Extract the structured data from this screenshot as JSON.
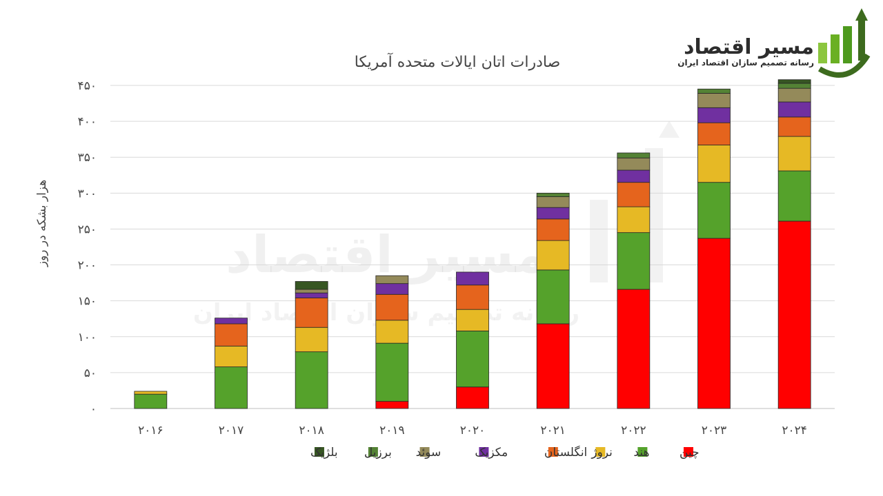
{
  "logo": {
    "name": "مسیر اقتصاد",
    "tagline": "رسانه تصمیم سازان اقتصاد ایران"
  },
  "chart_data": {
    "type": "bar",
    "stacked": true,
    "title": "صادرات اتان ایالات متحده آمریکا",
    "xlabel": "",
    "ylabel": "هزار بشکه در روز",
    "ylim": [
      0,
      450
    ],
    "y_ticks": [
      0,
      50,
      100,
      150,
      200,
      250,
      300,
      350,
      400,
      450
    ],
    "y_tick_labels": [
      "۰",
      "۵۰",
      "۱۰۰",
      "۱۵۰",
      "۲۰۰",
      "۲۵۰",
      "۳۰۰",
      "۳۵۰",
      "۴۰۰",
      "۴۵۰"
    ],
    "grid": true,
    "legend_position": "bottom",
    "categories": [
      "2016",
      "2017",
      "2018",
      "2019",
      "2020",
      "2021",
      "2022",
      "2023",
      "2024"
    ],
    "category_labels": [
      "۲۰۱۶",
      "۲۰۱۷",
      "۲۰۱۸",
      "۲۰۱۹",
      "۲۰۲۰",
      "۲۰۲۱",
      "۲۰۲۲",
      "۲۰۲۳",
      "۲۰۲۴"
    ],
    "series": [
      {
        "name": "چین",
        "color": "#ff0000",
        "values": [
          0,
          0,
          0,
          10,
          30,
          118,
          166,
          237,
          261
        ]
      },
      {
        "name": "هند",
        "color": "#55a22b",
        "values": [
          20,
          58,
          79,
          81,
          78,
          75,
          79,
          78,
          70
        ]
      },
      {
        "name": "نروژ",
        "color": "#e6b925",
        "values": [
          4,
          29,
          34,
          32,
          30,
          41,
          36,
          52,
          48
        ]
      },
      {
        "name": "انگلستان",
        "color": "#e5641d",
        "values": [
          0,
          31,
          41,
          36,
          34,
          30,
          34,
          31,
          27
        ]
      },
      {
        "name": "مکزیک",
        "color": "#7030a0",
        "values": [
          0,
          8,
          7,
          15,
          18,
          16,
          17,
          21,
          21
        ]
      },
      {
        "name": "سوئد",
        "color": "#948a5a",
        "values": [
          0,
          0,
          5,
          11,
          0,
          15,
          17,
          20,
          19
        ]
      },
      {
        "name": "برزیل",
        "color": "#548235",
        "values": [
          0,
          0,
          0,
          0,
          0,
          5,
          7,
          6,
          7
        ]
      },
      {
        "name": "بلژیک",
        "color": "#375623",
        "values": [
          0,
          0,
          11,
          0,
          0,
          0,
          0,
          0,
          5
        ]
      }
    ]
  }
}
